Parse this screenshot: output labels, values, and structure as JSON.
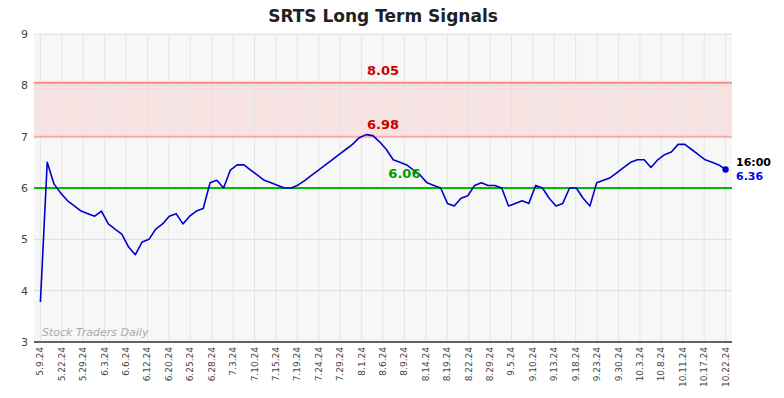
{
  "chart_data": {
    "type": "line",
    "title": "SRTS Long Term Signals",
    "color": "#0000cc",
    "grid": true,
    "xlim": [
      -0.3,
      32.3
    ],
    "xticks": [
      {
        "value": 0,
        "label": "5.9.24"
      },
      {
        "value": 1,
        "label": "5.22.24"
      },
      {
        "value": 2,
        "label": "5.29.24"
      },
      {
        "value": 3,
        "label": "6.3.24"
      },
      {
        "value": 4,
        "label": "6.6.24"
      },
      {
        "value": 5,
        "label": "6.12.24"
      },
      {
        "value": 6,
        "label": "6.20.24"
      },
      {
        "value": 7,
        "label": "6.25.24"
      },
      {
        "value": 8,
        "label": "6.28.24"
      },
      {
        "value": 9,
        "label": "7.3.24"
      },
      {
        "value": 10,
        "label": "7.10.24"
      },
      {
        "value": 11,
        "label": "7.15.24"
      },
      {
        "value": 12,
        "label": "7.19.24"
      },
      {
        "value": 13,
        "label": "7.24.24"
      },
      {
        "value": 14,
        "label": "7.29.24"
      },
      {
        "value": 15,
        "label": "8.1.24"
      },
      {
        "value": 16,
        "label": "8.6.24"
      },
      {
        "value": 17,
        "label": "8.9.24"
      },
      {
        "value": 18,
        "label": "8.14.24"
      },
      {
        "value": 19,
        "label": "8.19.24"
      },
      {
        "value": 20,
        "label": "8.22.24"
      },
      {
        "value": 21,
        "label": "8.29.24"
      },
      {
        "value": 22,
        "label": "9.5.24"
      },
      {
        "value": 23,
        "label": "9.10.24"
      },
      {
        "value": 24,
        "label": "9.13.24"
      },
      {
        "value": 25,
        "label": "9.18.24"
      },
      {
        "value": 26,
        "label": "9.23.24"
      },
      {
        "value": 27,
        "label": "9.30.24"
      },
      {
        "value": 28,
        "label": "10.3.24"
      },
      {
        "value": 29,
        "label": "10.8.24"
      },
      {
        "value": 30,
        "label": "10.11.24"
      },
      {
        "value": 31,
        "label": "10.17.24"
      },
      {
        "value": 32,
        "label": "10.22.24"
      }
    ],
    "ylim": [
      3,
      9
    ],
    "yticks": [
      3,
      4,
      5,
      6,
      7,
      8,
      9
    ],
    "x": [
      0,
      0.3168,
      0.6337,
      0.9505,
      1.2673,
      1.5842,
      1.901,
      2.2178,
      2.5347,
      2.8515,
      3.1683,
      3.4851,
      3.802,
      4.1188,
      4.4356,
      4.7525,
      5.0693,
      5.3861,
      5.703,
      6.0198,
      6.3366,
      6.6535,
      6.9703,
      7.2871,
      7.604,
      7.9208,
      8.2376,
      8.5545,
      8.8713,
      9.1881,
      9.505,
      9.8218,
      10.1386,
      10.4554,
      10.7723,
      11.0891,
      11.4059,
      11.7228,
      12.0396,
      12.3564,
      12.6733,
      12.9901,
      13.3069,
      13.6238,
      13.9406,
      14.2574,
      14.5743,
      14.8911,
      15.2079,
      15.5248,
      15.8416,
      16.1584,
      16.4752,
      16.7921,
      17.1089,
      17.4257,
      17.7426,
      18.0594,
      18.3762,
      18.6931,
      19.0099,
      19.3267,
      19.6436,
      19.9604,
      20.2772,
      20.5941,
      20.9109,
      21.2277,
      21.5446,
      21.8614,
      22.1782,
      22.495,
      22.8119,
      23.1287,
      23.4455,
      23.7624,
      24.0792,
      24.396,
      24.7129,
      25.0297,
      25.3465,
      25.6634,
      25.9802,
      26.297,
      26.6139,
      26.9307,
      27.2475,
      27.5644,
      27.8812,
      28.198,
      28.5149,
      28.8317,
      29.1485,
      29.4653,
      29.7822,
      30.099,
      30.4158,
      30.7327,
      31.0495,
      31.3663,
      31.6832,
      32
    ],
    "values": [
      3.78,
      6.5,
      6.08,
      5.9,
      5.75,
      5.65,
      5.55,
      5.5,
      5.45,
      5.55,
      5.3,
      5.2,
      5.1,
      4.85,
      4.7,
      4.95,
      5.0,
      5.2,
      5.3,
      5.45,
      5.5,
      5.3,
      5.45,
      5.55,
      5.6,
      6.1,
      6.15,
      6.0,
      6.35,
      6.45,
      6.45,
      6.35,
      6.25,
      6.15,
      6.1,
      6.05,
      6.0,
      6.0,
      6.06,
      6.15,
      6.25,
      6.35,
      6.45,
      6.55,
      6.65,
      6.75,
      6.85,
      6.98,
      7.04,
      7.02,
      6.9,
      6.75,
      6.55,
      6.5,
      6.45,
      6.35,
      6.25,
      6.1,
      6.05,
      6.0,
      5.7,
      5.65,
      5.8,
      5.85,
      6.05,
      6.1,
      6.05,
      6.05,
      6.0,
      5.65,
      5.7,
      5.75,
      5.7,
      6.05,
      6.0,
      5.8,
      5.65,
      5.7,
      6.0,
      6.0,
      5.8,
      5.65,
      6.1,
      6.15,
      6.2,
      6.3,
      6.4,
      6.5,
      6.55,
      6.55,
      6.4,
      6.55,
      6.65,
      6.7,
      6.85,
      6.85,
      6.75,
      6.65,
      6.55,
      6.5,
      6.45,
      6.36
    ],
    "bands": [
      {
        "from": 7.0,
        "to": 8.05,
        "color": "#ff8888"
      }
    ],
    "lines": [
      {
        "y": 8.05,
        "color": "#ff8888"
      },
      {
        "y": 7.0,
        "color": "#ffaaaa"
      },
      {
        "y": 6.0,
        "color": "#00bb00"
      }
    ],
    "annotations": [
      {
        "text": "8.05",
        "x": 16,
        "y": 8.2,
        "color": "#cc0000"
      },
      {
        "text": "6.98",
        "x": 16,
        "y": 7.15,
        "color": "#cc0000"
      },
      {
        "text": "6.06",
        "x": 17,
        "y": 6.2,
        "color": "#009900"
      },
      {
        "text": "16:00",
        "color": "#000000"
      },
      {
        "text": "6.36",
        "color": "#0000ee"
      }
    ],
    "watermark": {
      "text": "Stock Traders Daily",
      "color": "#aaaaaa"
    }
  }
}
